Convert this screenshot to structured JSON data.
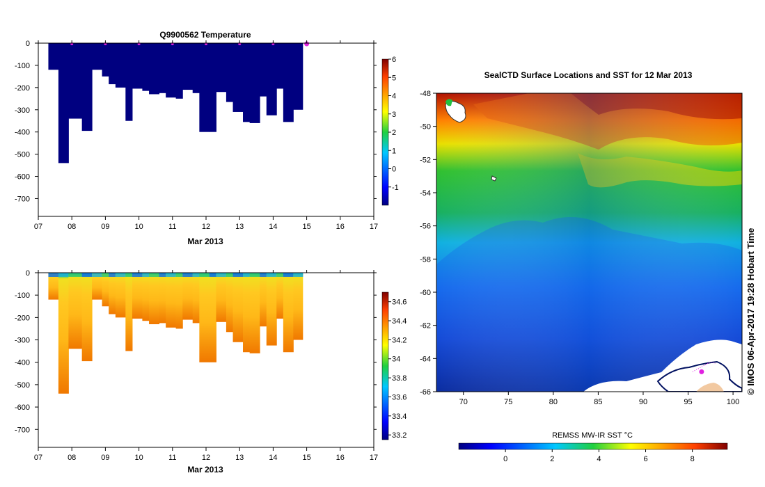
{
  "chart_data": [
    {
      "type": "heatmap",
      "name": "temperature-profile",
      "title": "Q9900562  Temperature",
      "xlabel": "Mar 2013",
      "ylabel": "",
      "x_ticks": [
        "07",
        "08",
        "09",
        "10",
        "11",
        "12",
        "13",
        "14",
        "15",
        "16",
        "17"
      ],
      "y_ticks": [
        "0",
        "-100",
        "-200",
        "-300",
        "-400",
        "-500",
        "-600",
        "-700"
      ],
      "xlim": [
        7,
        17
      ],
      "ylim": [
        -780,
        0
      ],
      "colorbar": {
        "ticks": [
          "6",
          "5",
          "4",
          "3",
          "2",
          "1",
          "0",
          "-1"
        ],
        "range": [
          -2,
          6
        ]
      },
      "profile_days": [
        7.3,
        7.6,
        7.9,
        8.3,
        8.6,
        8.9,
        9.1,
        9.3,
        9.6,
        9.8,
        10.1,
        10.3,
        10.6,
        10.8,
        11.1,
        11.3,
        11.6,
        11.8,
        12.1,
        12.3,
        12.6,
        12.8,
        13.1,
        13.3,
        13.6,
        13.8,
        14.1,
        14.3,
        14.6
      ],
      "profile_depths": [
        -120,
        -540,
        -340,
        -395,
        -120,
        -150,
        -185,
        -200,
        -350,
        -205,
        -215,
        -230,
        -225,
        -245,
        -250,
        -210,
        -225,
        -400,
        -400,
        -220,
        -265,
        -310,
        -355,
        -360,
        -240,
        -325,
        -205,
        -355,
        -300
      ],
      "surface_markers": [
        8,
        9,
        10,
        11,
        12,
        13,
        14,
        15
      ],
      "marker_color": "#e020e0"
    },
    {
      "type": "heatmap",
      "name": "salinity-profile",
      "title": "",
      "xlabel": "Mar 2013",
      "x_ticks": [
        "07",
        "08",
        "09",
        "10",
        "11",
        "12",
        "13",
        "14",
        "15",
        "16",
        "17"
      ],
      "y_ticks": [
        "0",
        "-100",
        "-200",
        "-300",
        "-400",
        "-500",
        "-600",
        "-700"
      ],
      "xlim": [
        7,
        17
      ],
      "ylim": [
        -780,
        0
      ],
      "colorbar": {
        "ticks": [
          "34.6",
          "34.4",
          "34.2",
          "34",
          "33.8",
          "33.6",
          "33.4",
          "33.2"
        ],
        "range": [
          33.15,
          34.7
        ]
      }
    },
    {
      "type": "heatmap",
      "name": "sst-map",
      "title": "SealCTD Surface Locations and SST for 12 Mar 2013",
      "x_ticks": [
        "70",
        "75",
        "80",
        "85",
        "90",
        "95",
        "100"
      ],
      "y_ticks": [
        "-48",
        "-50",
        "-52",
        "-54",
        "-56",
        "-58",
        "-60",
        "-62",
        "-64",
        "-66"
      ],
      "xlim": [
        67,
        101
      ],
      "ylim": [
        -66,
        -48
      ],
      "colorbar": {
        "label": "REMSS MW-IR SST °C",
        "ticks": [
          "0",
          "2",
          "4",
          "6",
          "8"
        ],
        "range": [
          -2,
          9.5
        ]
      },
      "track": [
        [
          95.5,
          -64.8
        ],
        [
          96.5,
          -64.5
        ],
        [
          97.5,
          -64.2
        ],
        [
          98,
          -64.3
        ]
      ],
      "seal_location": [
        96.5,
        -64.8
      ]
    }
  ],
  "credit": "© IMOS 06-Apr-2017 19:28 Hobart Time",
  "colors": {
    "temp_fill": "#000080",
    "marker": "#e020e0",
    "land": "#ffffff"
  }
}
